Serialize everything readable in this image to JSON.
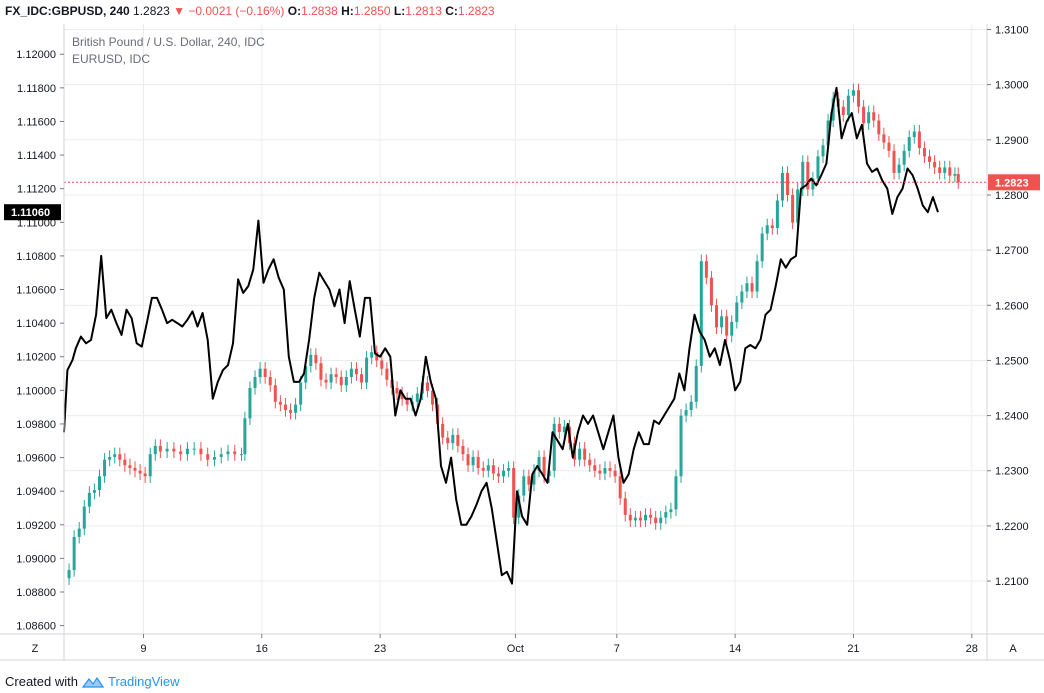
{
  "header": {
    "symbol": "FX_IDC:GBPUSD, 240",
    "last": "1.2823",
    "change": "−0.0021 (−0.16%)",
    "open_label": "O:",
    "open": "1.2838",
    "high_label": "H:",
    "high": "1.2850",
    "low_label": "L:",
    "low": "1.2813",
    "close_label": "C:",
    "close": "1.2823"
  },
  "legend": {
    "line1": "British Pound / U.S. Dollar, 240, IDC",
    "line2": "EURUSD, IDC"
  },
  "footer": {
    "created_with": "Created with",
    "brand": "TradingView"
  },
  "axis_buttons": {
    "left": "Z",
    "right": "A"
  },
  "colors": {
    "up": "#26a69a",
    "down": "#ef5350",
    "overlay": "#000000",
    "grid": "#e9ecf1",
    "badge_left": "#000000",
    "badge_right": "#ef5350"
  },
  "chart_data": {
    "type": "candlestick",
    "title": "British Pound / U.S. Dollar, 240, IDC",
    "x_ticks": [
      "9",
      "16",
      "23",
      "Oct",
      "7",
      "14",
      "21",
      "28"
    ],
    "x_tick_days": [
      9,
      16,
      23,
      31,
      37,
      44,
      51,
      58
    ],
    "x_range_days": [
      4.3,
      58.9
    ],
    "left_axis": {
      "series": "EURUSD, IDC",
      "range": [
        1.0855,
        1.1218
      ],
      "ticks": [
        "1.12000",
        "1.11800",
        "1.11600",
        "1.11400",
        "1.11200",
        "1.11000",
        "1.10800",
        "1.10600",
        "1.10400",
        "1.10200",
        "1.10000",
        "1.09800",
        "1.09600",
        "1.09400",
        "1.09200",
        "1.09000",
        "1.08800",
        "1.08600"
      ],
      "last_value": "1.11060"
    },
    "right_axis": {
      "series": "British Pound / U.S. Dollar, 240, IDC",
      "range": [
        1.2004,
        1.311
      ],
      "ticks": [
        "1.3100",
        "1.3000",
        "1.2900",
        "1.2800",
        "1.2700",
        "1.2600",
        "1.2500",
        "1.2400",
        "1.2300",
        "1.2200",
        "1.2100"
      ],
      "last_value": "1.2823"
    },
    "gbpusd_close_path": [
      [
        4.3,
        1.2105
      ],
      [
        4.6,
        1.212
      ],
      [
        4.9,
        1.218
      ],
      [
        5.2,
        1.2195
      ],
      [
        5.5,
        1.2235
      ],
      [
        5.8,
        1.226
      ],
      [
        6.1,
        1.2265
      ],
      [
        6.4,
        1.229
      ],
      [
        6.7,
        1.232
      ],
      [
        7.0,
        1.2325
      ],
      [
        7.3,
        1.233
      ],
      [
        7.6,
        1.232
      ],
      [
        7.9,
        1.231
      ],
      [
        8.2,
        1.2305
      ],
      [
        8.5,
        1.23
      ],
      [
        8.8,
        1.2295
      ],
      [
        9.1,
        1.229
      ],
      [
        9.4,
        1.233
      ],
      [
        9.7,
        1.2345
      ],
      [
        10.0,
        1.2335
      ],
      [
        10.4,
        1.234
      ],
      [
        10.8,
        1.2335
      ],
      [
        11.2,
        1.233
      ],
      [
        11.6,
        1.234
      ],
      [
        12.0,
        1.234
      ],
      [
        12.4,
        1.233
      ],
      [
        12.8,
        1.232
      ],
      [
        13.2,
        1.2325
      ],
      [
        13.6,
        1.233
      ],
      [
        14.0,
        1.2335
      ],
      [
        14.4,
        1.233
      ],
      [
        14.8,
        1.233
      ],
      [
        15.0,
        1.2395
      ],
      [
        15.3,
        1.245
      ],
      [
        15.6,
        1.247
      ],
      [
        15.9,
        1.2485
      ],
      [
        16.2,
        1.247
      ],
      [
        16.5,
        1.2455
      ],
      [
        16.8,
        1.2425
      ],
      [
        17.1,
        1.242
      ],
      [
        17.4,
        1.241
      ],
      [
        17.7,
        1.2405
      ],
      [
        18.0,
        1.242
      ],
      [
        18.3,
        1.246
      ],
      [
        18.6,
        1.249
      ],
      [
        18.9,
        1.251
      ],
      [
        19.2,
        1.2495
      ],
      [
        19.5,
        1.2465
      ],
      [
        19.8,
        1.246
      ],
      [
        20.1,
        1.2475
      ],
      [
        20.4,
        1.247
      ],
      [
        20.7,
        1.2455
      ],
      [
        21.0,
        1.247
      ],
      [
        21.3,
        1.2485
      ],
      [
        21.6,
        1.2475
      ],
      [
        21.9,
        1.246
      ],
      [
        22.2,
        1.2505
      ],
      [
        22.5,
        1.2515
      ],
      [
        22.8,
        1.25
      ],
      [
        23.1,
        1.2485
      ],
      [
        23.4,
        1.2465
      ],
      [
        23.7,
        1.245
      ],
      [
        24.0,
        1.244
      ],
      [
        24.3,
        1.243
      ],
      [
        24.6,
        1.242
      ],
      [
        24.9,
        1.2425
      ],
      [
        25.2,
        1.244
      ],
      [
        25.5,
        1.246
      ],
      [
        25.8,
        1.2445
      ],
      [
        26.1,
        1.242
      ],
      [
        26.4,
        1.2385
      ],
      [
        26.7,
        1.236
      ],
      [
        27.0,
        1.235
      ],
      [
        27.3,
        1.2365
      ],
      [
        27.6,
        1.2345
      ],
      [
        27.9,
        1.233
      ],
      [
        28.2,
        1.231
      ],
      [
        28.5,
        1.2325
      ],
      [
        28.8,
        1.2305
      ],
      [
        29.1,
        1.23
      ],
      [
        29.4,
        1.231
      ],
      [
        29.7,
        1.2295
      ],
      [
        30.0,
        1.229
      ],
      [
        30.3,
        1.23
      ],
      [
        30.6,
        1.2305
      ],
      [
        30.9,
        1.2215
      ],
      [
        31.2,
        1.2255
      ],
      [
        31.5,
        1.229
      ],
      [
        31.8,
        1.2275
      ],
      [
        32.1,
        1.23
      ],
      [
        32.4,
        1.2325
      ],
      [
        32.7,
        1.229
      ],
      [
        33.0,
        1.23
      ],
      [
        33.3,
        1.2385
      ],
      [
        33.6,
        1.237
      ],
      [
        33.9,
        1.238
      ],
      [
        34.2,
        1.235
      ],
      [
        34.5,
        1.232
      ],
      [
        34.8,
        1.234
      ],
      [
        35.1,
        1.232
      ],
      [
        35.4,
        1.231
      ],
      [
        35.7,
        1.23
      ],
      [
        36.0,
        1.2295
      ],
      [
        36.3,
        1.2305
      ],
      [
        36.6,
        1.23
      ],
      [
        36.9,
        1.229
      ],
      [
        37.2,
        1.225
      ],
      [
        37.5,
        1.222
      ],
      [
        37.8,
        1.221
      ],
      [
        38.1,
        1.2215
      ],
      [
        38.4,
        1.221
      ],
      [
        38.7,
        1.222
      ],
      [
        39.0,
        1.2215
      ],
      [
        39.3,
        1.2205
      ],
      [
        39.6,
        1.2215
      ],
      [
        39.9,
        1.2225
      ],
      [
        40.2,
        1.223
      ],
      [
        40.5,
        1.229
      ],
      [
        40.8,
        1.24
      ],
      [
        41.1,
        1.241
      ],
      [
        41.4,
        1.2425
      ],
      [
        41.7,
        1.249
      ],
      [
        42.0,
        1.268
      ],
      [
        42.3,
        1.265
      ],
      [
        42.6,
        1.26
      ],
      [
        42.9,
        1.256
      ],
      [
        43.2,
        1.258
      ],
      [
        43.5,
        1.2545
      ],
      [
        43.8,
        1.257
      ],
      [
        44.1,
        1.2605
      ],
      [
        44.4,
        1.2625
      ],
      [
        44.7,
        1.264
      ],
      [
        45.0,
        1.2625
      ],
      [
        45.3,
        1.268
      ],
      [
        45.6,
        1.273
      ],
      [
        45.9,
        1.2745
      ],
      [
        46.2,
        1.274
      ],
      [
        46.5,
        1.279
      ],
      [
        46.8,
        1.284
      ],
      [
        47.1,
        1.28
      ],
      [
        47.4,
        1.275
      ],
      [
        47.7,
        1.281
      ],
      [
        48.0,
        1.286
      ],
      [
        48.3,
        1.281
      ],
      [
        48.6,
        1.283
      ],
      [
        48.9,
        1.287
      ],
      [
        49.2,
        1.289
      ],
      [
        49.5,
        1.2935
      ],
      [
        49.8,
        1.2975
      ],
      [
        50.1,
        1.296
      ],
      [
        50.4,
        1.2945
      ],
      [
        50.7,
        1.298
      ],
      [
        51.0,
        1.299
      ],
      [
        51.3,
        1.296
      ],
      [
        51.6,
        1.293
      ],
      [
        51.9,
        1.295
      ],
      [
        52.2,
        1.2935
      ],
      [
        52.5,
        1.291
      ],
      [
        52.8,
        1.2895
      ],
      [
        53.1,
        1.288
      ],
      [
        53.4,
        1.284
      ],
      [
        53.7,
        1.2855
      ],
      [
        54.0,
        1.288
      ],
      [
        54.3,
        1.2905
      ],
      [
        54.6,
        1.2915
      ],
      [
        54.9,
        1.2885
      ],
      [
        55.2,
        1.287
      ],
      [
        55.5,
        1.286
      ],
      [
        55.8,
        1.285
      ],
      [
        56.1,
        1.284
      ],
      [
        56.4,
        1.285
      ],
      [
        56.7,
        1.2835
      ],
      [
        57.0,
        1.2838
      ],
      [
        57.2,
        1.2823
      ]
    ],
    "eurusd_close_path": [
      [
        4.3,
        1.0975
      ],
      [
        4.5,
        1.1012
      ],
      [
        4.8,
        1.1018
      ],
      [
        5.0,
        1.1025
      ],
      [
        5.3,
        1.1032
      ],
      [
        5.6,
        1.1028
      ],
      [
        5.9,
        1.103
      ],
      [
        6.2,
        1.1045
      ],
      [
        6.5,
        1.108
      ],
      [
        6.8,
        1.1043
      ],
      [
        7.1,
        1.1048
      ],
      [
        7.4,
        1.104
      ],
      [
        7.7,
        1.1033
      ],
      [
        8.0,
        1.1048
      ],
      [
        8.3,
        1.1043
      ],
      [
        8.6,
        1.1028
      ],
      [
        8.9,
        1.1026
      ],
      [
        9.2,
        1.104
      ],
      [
        9.5,
        1.1055
      ],
      [
        9.8,
        1.1055
      ],
      [
        10.1,
        1.1048
      ],
      [
        10.4,
        1.104
      ],
      [
        10.7,
        1.1042
      ],
      [
        11.0,
        1.104
      ],
      [
        11.3,
        1.1038
      ],
      [
        11.6,
        1.1042
      ],
      [
        11.9,
        1.1047
      ],
      [
        12.2,
        1.1038
      ],
      [
        12.5,
        1.1046
      ],
      [
        12.8,
        1.103
      ],
      [
        13.1,
        1.0995
      ],
      [
        13.4,
        1.1005
      ],
      [
        13.7,
        1.1012
      ],
      [
        14.0,
        1.1015
      ],
      [
        14.3,
        1.1028
      ],
      [
        14.6,
        1.1066
      ],
      [
        14.9,
        1.1058
      ],
      [
        15.2,
        1.1062
      ],
      [
        15.5,
        1.1072
      ],
      [
        15.8,
        1.1101
      ],
      [
        16.1,
        1.1064
      ],
      [
        16.4,
        1.1072
      ],
      [
        16.7,
        1.1078
      ],
      [
        17.0,
        1.1067
      ],
      [
        17.3,
        1.106
      ],
      [
        17.6,
        1.102
      ],
      [
        17.9,
        1.1005
      ],
      [
        18.2,
        1.1005
      ],
      [
        18.5,
        1.101
      ],
      [
        18.8,
        1.103
      ],
      [
        19.1,
        1.1055
      ],
      [
        19.4,
        1.107
      ],
      [
        19.7,
        1.1065
      ],
      [
        20.0,
        1.106
      ],
      [
        20.3,
        1.105
      ],
      [
        20.6,
        1.106
      ],
      [
        20.9,
        1.104
      ],
      [
        21.2,
        1.1065
      ],
      [
        21.5,
        1.1048
      ],
      [
        21.8,
        1.1032
      ],
      [
        22.1,
        1.1055
      ],
      [
        22.4,
        1.1055
      ],
      [
        22.7,
        1.1022
      ],
      [
        23.0,
        1.102
      ],
      [
        23.3,
        1.1025
      ],
      [
        23.6,
        1.102
      ],
      [
        23.9,
        1.0985
      ],
      [
        24.2,
        1.1
      ],
      [
        24.5,
        1.0995
      ],
      [
        24.8,
        1.0995
      ],
      [
        25.1,
        1.0985
      ],
      [
        25.4,
        1.0995
      ],
      [
        25.7,
        1.102
      ],
      [
        26.0,
        1.1005
      ],
      [
        26.3,
        1.0995
      ],
      [
        26.6,
        1.0955
      ],
      [
        26.9,
        1.0945
      ],
      [
        27.2,
        1.096
      ],
      [
        27.5,
        1.0935
      ],
      [
        27.8,
        1.092
      ],
      [
        28.1,
        1.092
      ],
      [
        28.4,
        1.0925
      ],
      [
        28.7,
        1.0932
      ],
      [
        29.0,
        1.094
      ],
      [
        29.3,
        1.0945
      ],
      [
        29.6,
        1.093
      ],
      [
        29.9,
        1.091
      ],
      [
        30.2,
        1.089
      ],
      [
        30.5,
        1.0892
      ],
      [
        30.8,
        1.0885
      ],
      [
        31.1,
        1.094
      ],
      [
        31.4,
        1.0925
      ],
      [
        31.7,
        1.092
      ],
      [
        32.0,
        1.095
      ],
      [
        32.3,
        1.0955
      ],
      [
        32.6,
        1.095
      ],
      [
        32.9,
        1.0945
      ],
      [
        33.2,
        1.0975
      ],
      [
        33.5,
        1.097
      ],
      [
        33.8,
        1.0965
      ],
      [
        34.1,
        1.098
      ],
      [
        34.4,
        1.096
      ],
      [
        34.7,
        1.0975
      ],
      [
        35.0,
        1.0985
      ],
      [
        35.3,
        1.098
      ],
      [
        35.6,
        1.0985
      ],
      [
        35.9,
        1.0975
      ],
      [
        36.2,
        1.0965
      ],
      [
        36.5,
        1.0975
      ],
      [
        36.8,
        1.0985
      ],
      [
        37.1,
        1.096
      ],
      [
        37.4,
        1.0945
      ],
      [
        37.7,
        1.095
      ],
      [
        38.0,
        1.0965
      ],
      [
        38.3,
        1.0975
      ],
      [
        38.6,
        1.0968
      ],
      [
        38.9,
        1.0968
      ],
      [
        39.2,
        1.0982
      ],
      [
        39.5,
        1.098
      ],
      [
        39.8,
        1.0985
      ],
      [
        40.1,
        1.099
      ],
      [
        40.4,
        1.0995
      ],
      [
        40.7,
        1.101
      ],
      [
        41.0,
        1.1
      ],
      [
        41.3,
        1.1025
      ],
      [
        41.6,
        1.1045
      ],
      [
        41.9,
        1.1035
      ],
      [
        42.2,
        1.103
      ],
      [
        42.5,
        1.102
      ],
      [
        42.8,
        1.1025
      ],
      [
        43.1,
        1.1015
      ],
      [
        43.4,
        1.103
      ],
      [
        43.7,
        1.1018
      ],
      [
        44.0,
        1.1
      ],
      [
        44.3,
        1.1005
      ],
      [
        44.6,
        1.1025
      ],
      [
        44.9,
        1.1027
      ],
      [
        45.2,
        1.1025
      ],
      [
        45.5,
        1.103
      ],
      [
        45.8,
        1.1045
      ],
      [
        46.1,
        1.1048
      ],
      [
        46.4,
        1.1062
      ],
      [
        46.7,
        1.1078
      ],
      [
        47.0,
        1.1073
      ],
      [
        47.3,
        1.1078
      ],
      [
        47.6,
        1.108
      ],
      [
        47.9,
        1.112
      ],
      [
        48.2,
        1.1122
      ],
      [
        48.5,
        1.1126
      ],
      [
        48.8,
        1.1122
      ],
      [
        49.1,
        1.1128
      ],
      [
        49.4,
        1.1135
      ],
      [
        49.7,
        1.1165
      ],
      [
        50.0,
        1.118
      ],
      [
        50.3,
        1.115
      ],
      [
        50.6,
        1.116
      ],
      [
        50.9,
        1.1165
      ],
      [
        51.2,
        1.115
      ],
      [
        51.5,
        1.1158
      ],
      [
        51.8,
        1.1135
      ],
      [
        52.1,
        1.113
      ],
      [
        52.4,
        1.1132
      ],
      [
        52.7,
        1.1125
      ],
      [
        53.0,
        1.112
      ],
      [
        53.3,
        1.1105
      ],
      [
        53.6,
        1.1115
      ],
      [
        53.9,
        1.112
      ],
      [
        54.2,
        1.1132
      ],
      [
        54.5,
        1.1128
      ],
      [
        54.8,
        1.112
      ],
      [
        55.1,
        1.111
      ],
      [
        55.4,
        1.1106
      ],
      [
        55.7,
        1.1115
      ],
      [
        56.0,
        1.1106
      ]
    ]
  }
}
